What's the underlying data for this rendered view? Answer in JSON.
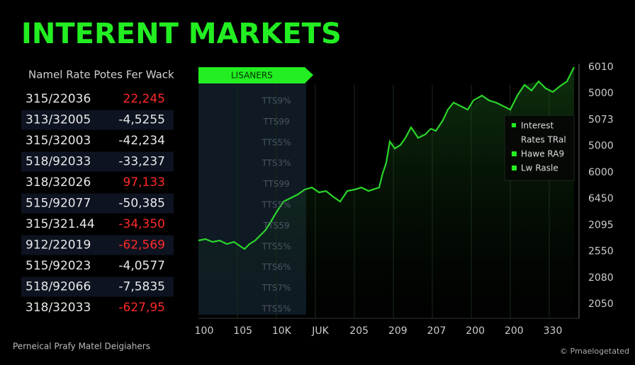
{
  "title": "INTERENT MARKETS",
  "table": {
    "header": "Namel Rate Potes Fer Wack",
    "rows": [
      {
        "date": "315/22036",
        "value": "22,245",
        "color": "#ff2a2a"
      },
      {
        "date": "313/32005",
        "value": "-4,5255",
        "color": "#e8e8e8"
      },
      {
        "date": "315/32003",
        "value": "-42,234",
        "color": "#e8e8e8"
      },
      {
        "date": "518/92033",
        "value": "-33,237",
        "color": "#e8e8e8"
      },
      {
        "date": "318/32026",
        "value": "97,133",
        "color": "#ff2a2a"
      },
      {
        "date": "515/92077",
        "value": "-50,385",
        "color": "#e8e8e8"
      },
      {
        "date": "315/321.44",
        "value": "-34,350",
        "color": "#ff2a2a"
      },
      {
        "date": "912/22019",
        "value": "-62,569",
        "color": "#ff2a2a"
      },
      {
        "date": "515/92023",
        "value": "-4,0577",
        "color": "#e8e8e8"
      },
      {
        "date": "518/92066",
        "value": "-7,5835",
        "color": "#e8e8e8"
      },
      {
        "date": "318/32033",
        "value": "-627,95",
        "color": "#ff2a2a"
      }
    ]
  },
  "banner": "LISANERS",
  "column_labels": [
    "TTS9%",
    "TTS99",
    "TTS5%",
    "TTS3%",
    "TTS99",
    "TTS5%",
    "TTS59",
    "TTS5%",
    "TTS6%",
    "TTS7%",
    "TTS5%"
  ],
  "legend": {
    "title": "Interest",
    "items": [
      "Rates TRal",
      "Hawe RA9",
      "Lw Rasle"
    ]
  },
  "y_axis_labels": [
    "6010",
    "5000",
    "5073",
    "5000",
    "6000",
    "6450",
    "2095",
    "2550",
    "2080",
    "2050"
  ],
  "x_axis_labels": [
    "100",
    "105",
    "10K",
    "JUK",
    "205",
    "209",
    "207",
    "200",
    "200",
    "330"
  ],
  "footer": {
    "left": "Perneical Prafy Matel Deigiahers",
    "right": "© Pmaelogetated"
  }
}
